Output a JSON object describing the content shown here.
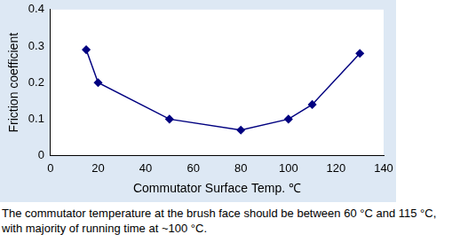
{
  "chart_data": {
    "type": "line",
    "x_label": "Commutator Surface Temp. ℃",
    "y_label": "Friction coefficient",
    "x": [
      15,
      20,
      50,
      80,
      100,
      110,
      130
    ],
    "values": [
      0.29,
      0.2,
      0.1,
      0.07,
      0.1,
      0.14,
      0.28
    ],
    "color": "#000080",
    "marker": "diamond",
    "xlim": [
      0,
      140
    ],
    "xticks": [
      0,
      20,
      40,
      60,
      80,
      100,
      120,
      140
    ],
    "ylim": [
      0,
      0.4
    ],
    "yticks": [
      0,
      0.1,
      0.2,
      0.3,
      0.4
    ],
    "grid": false
  },
  "caption": "The commutator temperature at the brush face should be between 60 °C and 115 °C, with majority of running time at ~100 °C."
}
